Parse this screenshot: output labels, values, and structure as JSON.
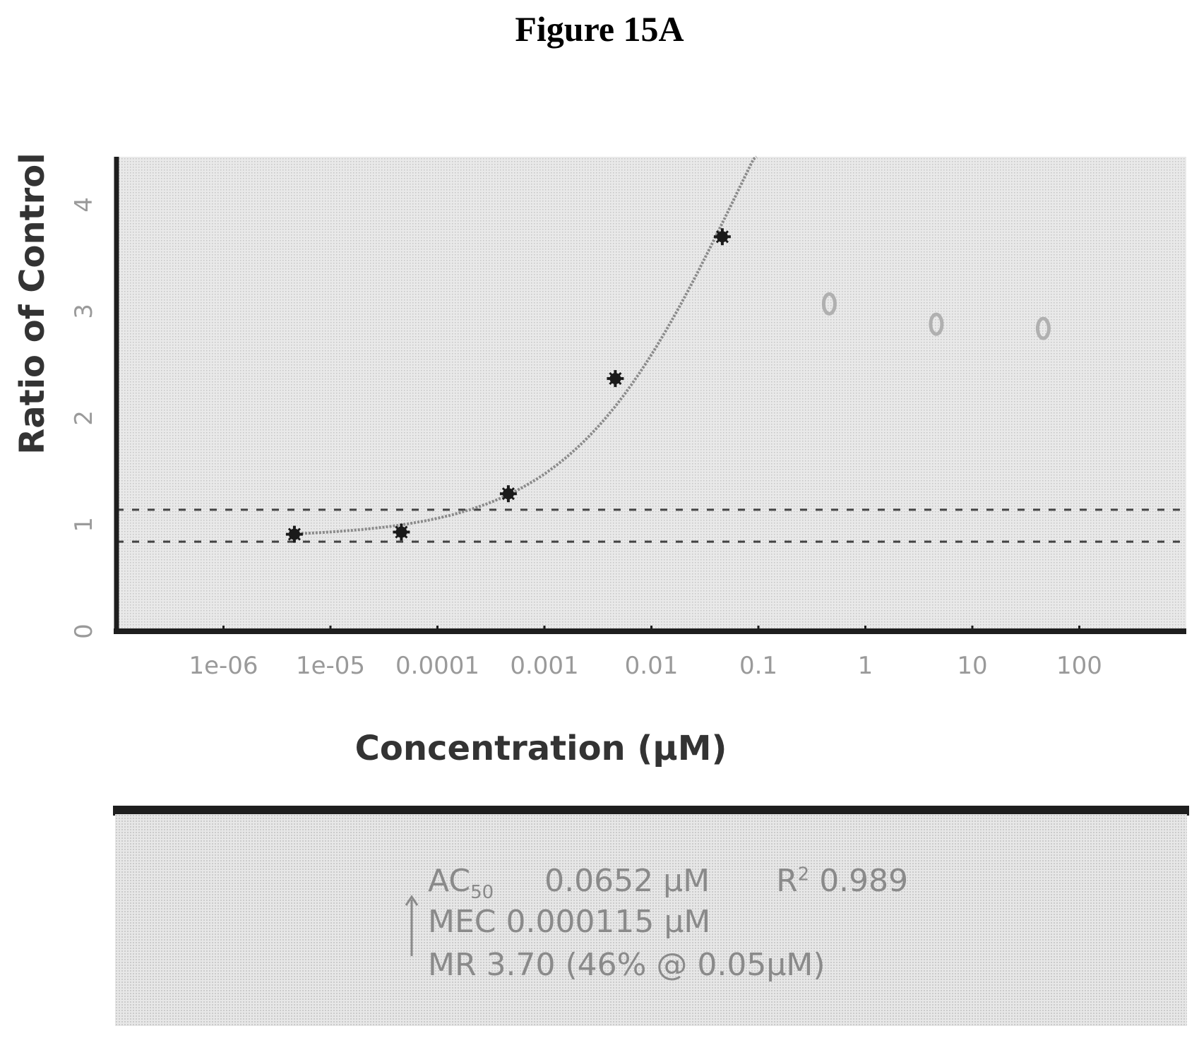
{
  "figure_title": "Figure 15A",
  "chart_data": {
    "type": "scatter",
    "xscale": "log",
    "x_tick_labels": [
      "1e-06",
      "1e-05",
      "0.0001",
      "0.001",
      "0.01",
      "0.1",
      "1",
      "10",
      "100"
    ],
    "x_tick_values": [
      1e-06,
      1e-05,
      0.0001,
      0.001,
      0.01,
      0.1,
      1,
      10,
      100
    ],
    "xlim": [
      1e-07,
      1000
    ],
    "y_tick_labels": [
      "0",
      "1",
      "2",
      "3",
      "4"
    ],
    "y_tick_values": [
      0,
      1,
      2,
      3,
      4
    ],
    "ylim": [
      0,
      4.45
    ],
    "xlabel": "Concentration  (µM)",
    "ylabel": "Ratio of Control",
    "grid": false,
    "series": [
      {
        "x": [
          4.6e-06,
          4.6e-05,
          0.00046,
          0.0046,
          0.046
        ],
        "y": [
          0.91,
          0.93,
          1.29,
          2.37,
          3.7
        ],
        "marker": "star",
        "color": "#1a1a1a"
      },
      {
        "x": [
          0.46,
          4.6,
          46
        ],
        "y": [
          3.07,
          2.88,
          2.84
        ],
        "marker": "open-circle",
        "color": "#b0b0b0"
      }
    ],
    "fit_curve": {
      "bottom": 0.88,
      "top": 7.4,
      "ec50": 0.0652,
      "hill": 0.55,
      "x_end": 0.2
    },
    "reference_lines": [
      1.14,
      0.84
    ]
  },
  "stats": {
    "ac50_label": "AC",
    "ac50_sub": "50",
    "ac50_value": "0.0652 µM",
    "r2_label": "R",
    "r2_sup": "2",
    "r2_value": "0.989",
    "mec_line": "MEC 0.000115 µM",
    "mr_line": "MR   3.70 (46% @ 0.05µM)"
  },
  "colors": {
    "plot_bg": "#e6e6e6",
    "axis": "#1e1e1e",
    "fit_line": "#8a8a8a",
    "ref_line": "#444444"
  }
}
